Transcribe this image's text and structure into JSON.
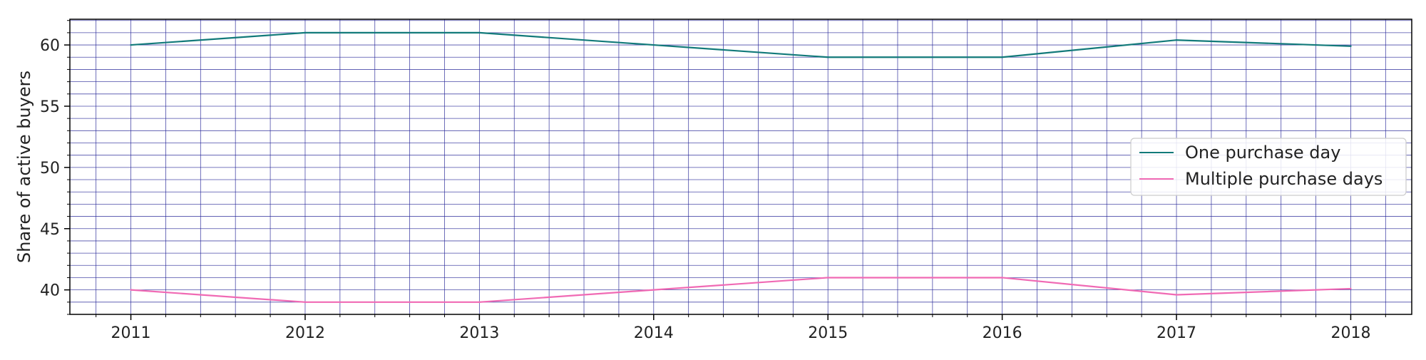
{
  "chart_data": {
    "type": "line",
    "ylabel": "Share of active buyers",
    "x": [
      "2011",
      "2012",
      "2013",
      "2014",
      "2015",
      "2016",
      "2017",
      "2018"
    ],
    "series": [
      {
        "name": "One purchase day",
        "color": "#127a7a",
        "values": [
          60.0,
          61.0,
          61.0,
          60.0,
          59.0,
          59.0,
          60.4,
          59.9
        ]
      },
      {
        "name": "Multiple purchase days",
        "color": "#f06ab4",
        "values": [
          40.0,
          39.0,
          39.0,
          40.0,
          41.0,
          41.0,
          39.6,
          40.1
        ]
      }
    ],
    "xlim": [
      2010.65,
      2018.35
    ],
    "ylim": [
      38.0,
      62.1
    ],
    "yticks": [
      40,
      45,
      50,
      55,
      60
    ],
    "grid": true,
    "grid_color": "#2b2b9a",
    "legend_position": "center-right"
  }
}
